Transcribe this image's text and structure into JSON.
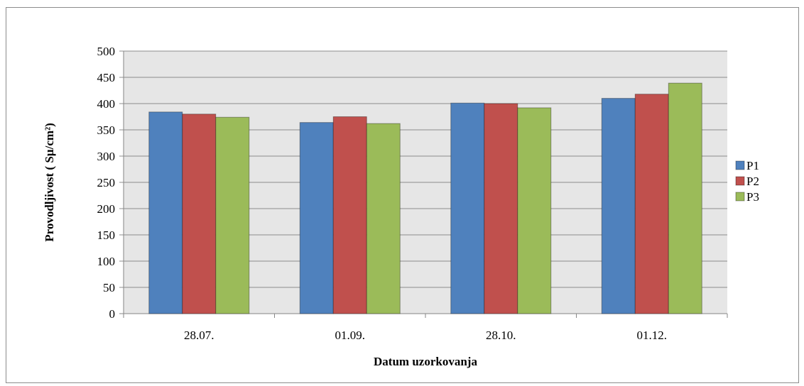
{
  "chart_data": {
    "type": "bar",
    "title": "",
    "xlabel": "Datum uzorkovanja",
    "ylabel": "Provodljivost ( Sµ/cm²)",
    "categories": [
      "28.07.",
      "01.09.",
      "28.10.",
      "01.12."
    ],
    "series": [
      {
        "name": "P1",
        "values": [
          384,
          364,
          401,
          410
        ],
        "color": "#4f81bd"
      },
      {
        "name": "P2",
        "values": [
          380,
          375,
          400,
          418
        ],
        "color": "#c0504d"
      },
      {
        "name": "P3",
        "values": [
          374,
          362,
          392,
          439
        ],
        "color": "#9bbb59"
      }
    ],
    "ylim": [
      0,
      500
    ],
    "yticks": [
      "0",
      "50",
      "100",
      "150",
      "200",
      "250",
      "300",
      "350",
      "400",
      "450",
      "500"
    ],
    "grid": true,
    "plot_background": "#e6e6e6",
    "legend_position": "right"
  }
}
